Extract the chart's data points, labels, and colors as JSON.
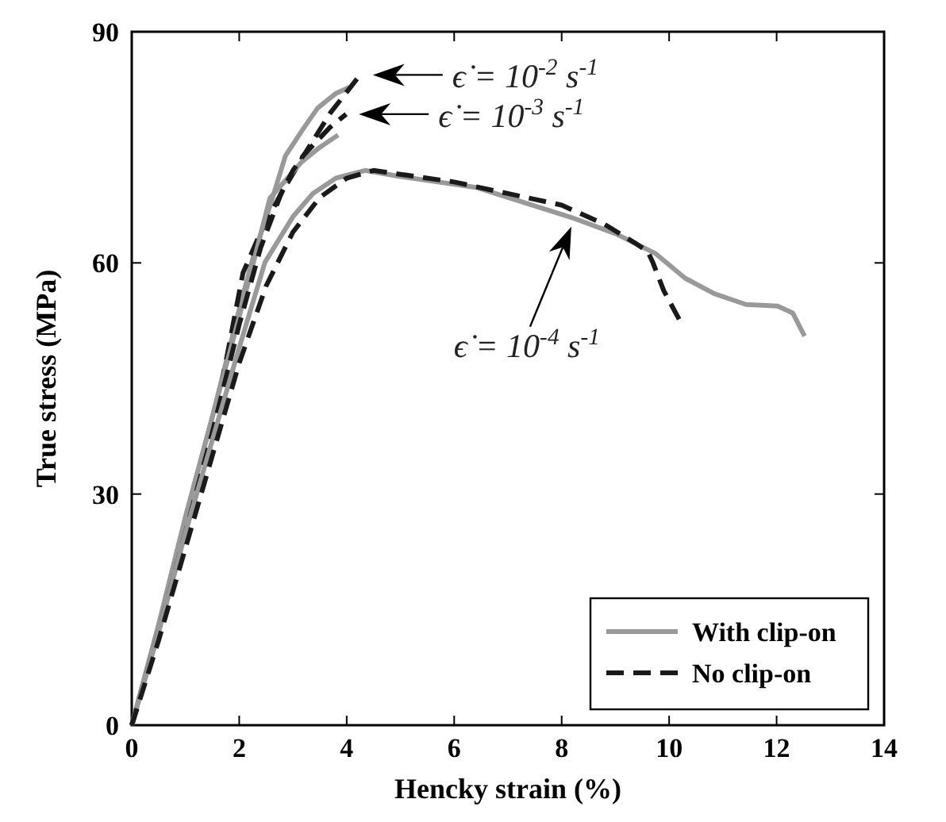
{
  "chart_data": {
    "type": "line",
    "xlabel": "Hencky strain (%)",
    "ylabel": "True stress (MPa)",
    "xlim": [
      0,
      14
    ],
    "xticks": [
      0,
      2,
      4,
      6,
      8,
      10,
      12,
      14
    ],
    "ylim": [
      0,
      90
    ],
    "yticks": [
      0,
      30,
      60,
      90
    ],
    "grid": false,
    "legend": "bottom right",
    "marker": "none",
    "series": [
      {
        "name": "With clip-on",
        "color": "#999999",
        "line_style": "solid",
        "x": [
          0,
          0.5,
          1,
          1.5,
          2,
          2.27,
          2.6,
          2.86,
          3.2,
          3.46,
          3.8,
          4.05
        ],
        "values": [
          0,
          13,
          27,
          40,
          54,
          61,
          68,
          73.9,
          77.5,
          80.1,
          82,
          82.8
        ]
      },
      {
        "name": "No clip-on",
        "color": "#1a1a1a",
        "line_style": "dashed",
        "x": [
          0,
          0.5,
          1,
          1.5,
          2.07,
          2.4,
          2.78,
          3.25,
          3.7,
          4.25
        ],
        "values": [
          0,
          12,
          25,
          38,
          58.7,
          64,
          69,
          74.5,
          79.5,
          84.4
        ]
      },
      {
        "color": "#999999",
        "line_style": "solid",
        "x": [
          0,
          0.5,
          1,
          1.5,
          2,
          2.3,
          2.57,
          2.9,
          3.16,
          3.5,
          3.84
        ],
        "values": [
          0,
          13,
          27,
          40,
          53,
          61,
          68.4,
          71,
          73.1,
          75,
          76.6
        ]
      },
      {
        "color": "#1a1a1a",
        "line_style": "dashed",
        "x": [
          0,
          0.5,
          1,
          1.5,
          2,
          2.4,
          2.78,
          3.0,
          3.2,
          3.69,
          3.99
        ],
        "values": [
          0,
          12,
          25,
          38,
          52,
          62,
          69,
          72,
          74,
          77.6,
          79.3
        ]
      },
      {
        "color": "#999999",
        "line_style": "solid",
        "x": [
          0,
          0.5,
          1,
          1.5,
          2,
          2.48,
          3,
          3.37,
          3.8,
          4.34,
          5,
          6.41,
          7,
          8.18,
          9,
          9.75,
          10.3,
          10.84,
          11.43,
          12.02,
          12.3,
          12.52
        ],
        "values": [
          0,
          12,
          25,
          37,
          49,
          60.1,
          66,
          69,
          71,
          72,
          71.2,
          69.8,
          68.5,
          65.9,
          63.8,
          61.2,
          58,
          56,
          54.6,
          54.4,
          53.5,
          50.5
        ]
      },
      {
        "color": "#1a1a1a",
        "line_style": "dashed",
        "x": [
          0,
          0.5,
          1,
          1.5,
          2,
          2.5,
          3,
          3.5,
          4,
          4.5,
          5,
          6,
          7,
          8,
          8.8,
          9.36,
          9.6,
          9.7,
          9.9,
          10.2
        ],
        "values": [
          0,
          11,
          23,
          35,
          47,
          57,
          64,
          68.5,
          71,
          72,
          71.5,
          70.5,
          69,
          67.5,
          65,
          62.6,
          61.5,
          60,
          56.4,
          52.5
        ]
      }
    ],
    "annotations": [
      {
        "text": "ϵ̇ = 10$^{-2}$ s$^{-1}$",
        "x": 4.25,
        "y": 84.4
      },
      {
        "text": "ϵ̇ = 10$^{-3}$ s$^{-1}$",
        "x": 3.99,
        "y": 79.3
      },
      {
        "text": "ϵ̇ = 10$^{-4}$ s$^{-1}$",
        "x": 8.18,
        "y": 64.7
      }
    ]
  }
}
